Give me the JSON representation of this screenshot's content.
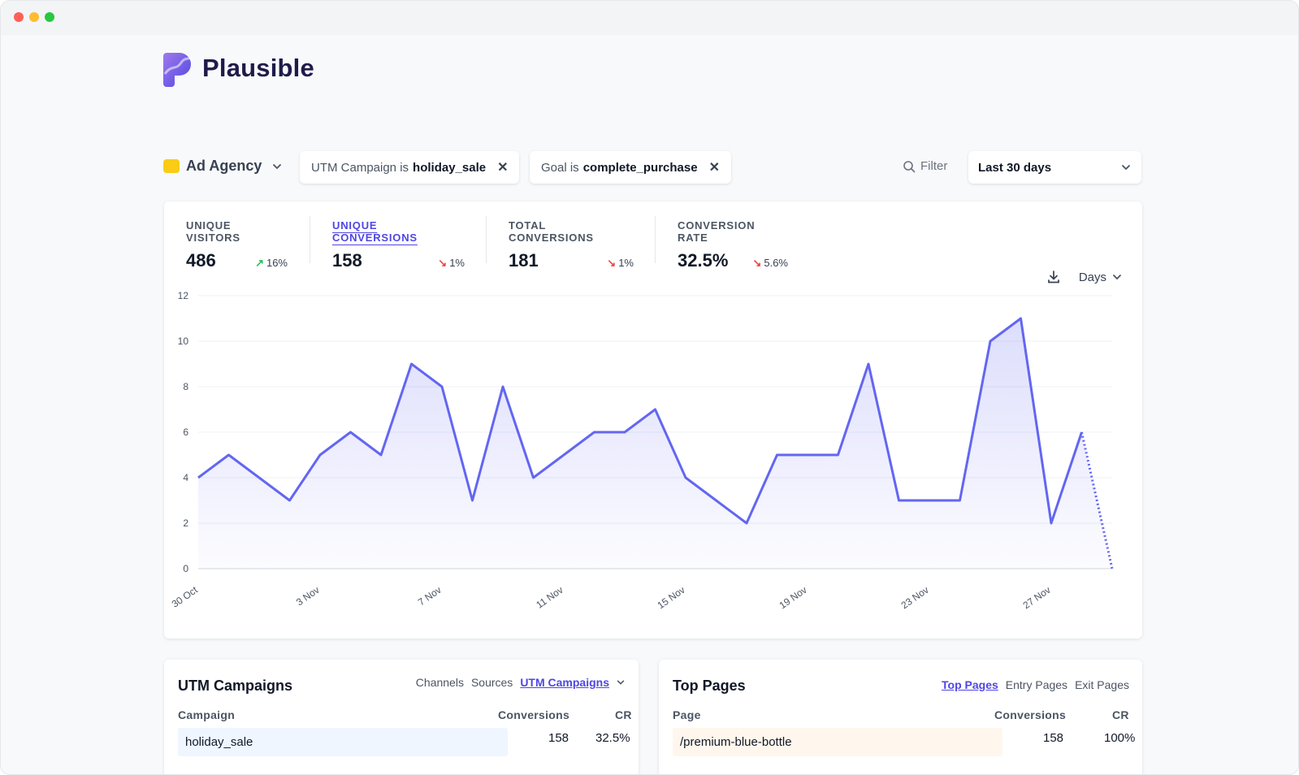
{
  "brand": {
    "name": "Plausible",
    "primary_color": "#5850ec"
  },
  "site": {
    "name": "Ad Agency",
    "favicon_color": "#facc15"
  },
  "filters": [
    {
      "prefix": "UTM Campaign is",
      "value": "holiday_sale"
    },
    {
      "prefix": "Goal is",
      "value": "complete_purchase"
    }
  ],
  "toolbar": {
    "filter_label": "Filter",
    "period_label": "Last 30 days"
  },
  "stats": [
    {
      "label": "UNIQUE VISITORS",
      "value": "486",
      "change": "16%",
      "direction": "up"
    },
    {
      "label": "UNIQUE CONVERSIONS",
      "value": "158",
      "change": "1%",
      "direction": "down",
      "active": true
    },
    {
      "label": "TOTAL CONVERSIONS",
      "value": "181",
      "change": "1%",
      "direction": "down"
    },
    {
      "label": "CONVERSION RATE",
      "value": "32.5%",
      "change": "5.6%",
      "direction": "down"
    }
  ],
  "chart_controls": {
    "interval_label": "Days",
    "download_icon": "download-icon"
  },
  "chart_data": {
    "type": "area",
    "x_tick_labels": [
      "30 Oct",
      "3 Nov",
      "7 Nov",
      "11 Nov",
      "15 Nov",
      "19 Nov",
      "23 Nov",
      "27 Nov"
    ],
    "y_ticks": [
      0,
      2,
      4,
      6,
      8,
      10,
      12
    ],
    "ylim": [
      0,
      12
    ],
    "series": [
      {
        "x": [
          "30 Oct",
          "31 Oct",
          "1 Nov",
          "2 Nov",
          "3 Nov",
          "4 Nov",
          "5 Nov",
          "6 Nov",
          "7 Nov",
          "8 Nov",
          "9 Nov",
          "10 Nov",
          "11 Nov",
          "12 Nov",
          "13 Nov",
          "14 Nov",
          "15 Nov",
          "16 Nov",
          "17 Nov",
          "18 Nov",
          "19 Nov",
          "20 Nov",
          "21 Nov",
          "22 Nov",
          "23 Nov",
          "24 Nov",
          "25 Nov",
          "26 Nov",
          "27 Nov",
          "28 Nov",
          "29 Nov"
        ],
        "values": [
          4,
          5,
          4,
          3,
          5,
          6,
          5,
          9,
          8,
          3,
          8,
          4,
          5,
          6,
          6,
          7,
          4,
          3,
          2,
          5,
          5,
          5,
          9,
          3,
          3,
          3,
          10,
          11,
          2,
          6,
          0
        ],
        "partial_last_point": true
      }
    ],
    "line_color": "#6366f1",
    "grid": true
  },
  "panels": {
    "left": {
      "title": "UTM Campaigns",
      "tabs": [
        "Channels",
        "Sources",
        "UTM Campaigns"
      ],
      "active_tab": "UTM Campaigns",
      "columns": [
        "Campaign",
        "Conversions",
        "CR"
      ],
      "rows": [
        {
          "label": "holiday_sale",
          "conversions": "158",
          "cr": "32.5%"
        }
      ],
      "bar_color": "#eff6ff"
    },
    "right": {
      "title": "Top Pages",
      "tabs": [
        "Top Pages",
        "Entry Pages",
        "Exit Pages"
      ],
      "active_tab": "Top Pages",
      "columns": [
        "Page",
        "Conversions",
        "CR"
      ],
      "rows": [
        {
          "label": "/premium-blue-bottle",
          "conversions": "158",
          "cr": "100%"
        }
      ],
      "bar_color": "#fff7ed"
    }
  }
}
